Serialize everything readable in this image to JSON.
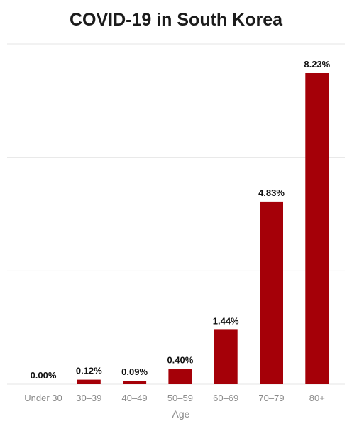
{
  "chart_data": {
    "type": "bar",
    "title": "COVID-19 in South Korea",
    "xlabel": "Age",
    "ylabel": "",
    "categories": [
      "Under 30",
      "30–39",
      "40–49",
      "50–59",
      "60–69",
      "70–79",
      "80+"
    ],
    "values": [
      0.0,
      0.12,
      0.09,
      0.4,
      1.44,
      4.83,
      8.23
    ],
    "value_labels": [
      "0.00%",
      "0.12%",
      "0.09%",
      "0.40%",
      "1.44%",
      "4.83%",
      "8.23%"
    ],
    "ylim": [
      0,
      9
    ],
    "grid": true,
    "legend": "none",
    "colors": {
      "bar": "#a50008",
      "grid": "#e6e6e6",
      "title": "#1b1b1b",
      "tick": "#8a8a8a"
    }
  }
}
